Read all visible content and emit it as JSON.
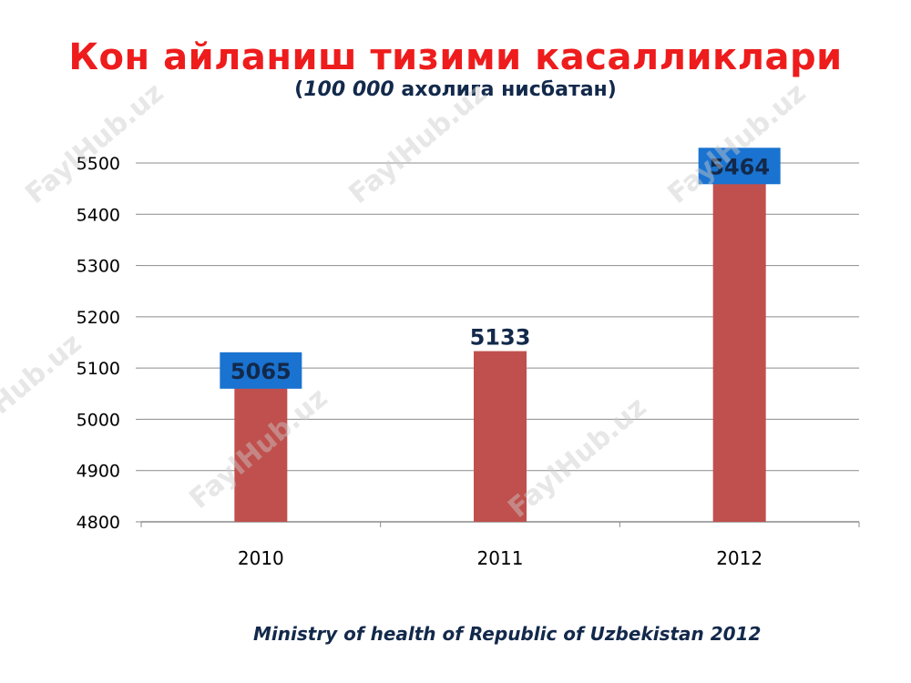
{
  "header": {
    "title": "Кон айланиш тизими касалликлари",
    "subtitle_open": "(",
    "subtitle_number": "100 000",
    "subtitle_rest": " ахолига нисбатан)"
  },
  "footer": {
    "source": "Ministry of health of Republic of Uzbekistan 2012"
  },
  "watermark": {
    "text": "FaylHub.uz"
  },
  "colors": {
    "title": "#ee1c1c",
    "bar": "#c0504d",
    "label_box": "#1a73d0",
    "label_text": "#13294b"
  },
  "chart_data": {
    "type": "bar",
    "categories": [
      "2010",
      "2011",
      "2012"
    ],
    "values": [
      5065,
      5133,
      5464
    ],
    "data_labels": [
      "5065",
      "5133",
      "5464"
    ],
    "highlighted_labels": [
      true,
      false,
      true
    ],
    "ylim": [
      4800,
      5500
    ],
    "yticks": [
      4800,
      4900,
      5000,
      5100,
      5200,
      5300,
      5400,
      5500
    ],
    "grid": true,
    "legend": "none"
  }
}
